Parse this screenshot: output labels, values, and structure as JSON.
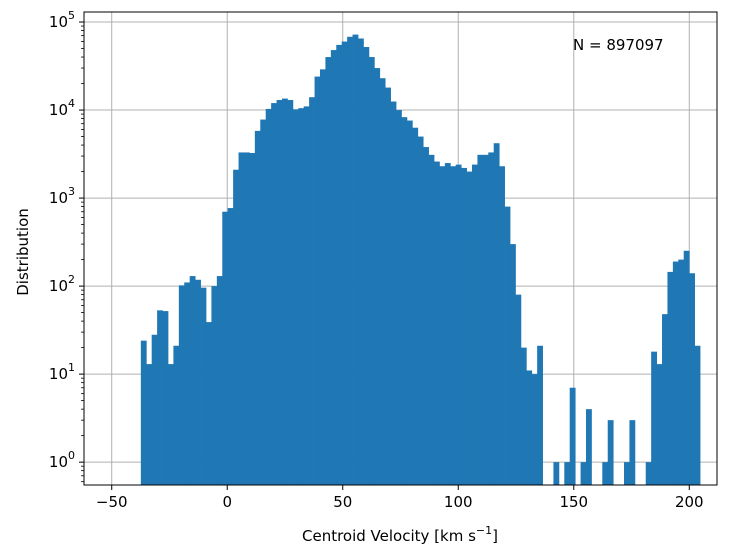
{
  "chart_data": {
    "type": "bar",
    "subtype": "histogram",
    "xlabel_main": "Centroid Velocity [km s",
    "xlabel_sup": "−1",
    "xlabel_end": "]",
    "ylabel": "Distribution",
    "annotation": "N = 897097",
    "xlim": [
      -62,
      212
    ],
    "ylim": [
      0.55,
      130000
    ],
    "yscale": "log",
    "grid": true,
    "color": "#1f77b4",
    "xticks": [
      -50,
      0,
      50,
      100,
      150,
      200
    ],
    "xtick_labels": [
      "−50",
      "0",
      "50",
      "100",
      "150",
      "200"
    ],
    "yticks": [
      1,
      10,
      100,
      1000,
      10000,
      100000
    ],
    "ytick_base": "10",
    "ytick_exponents": [
      "0",
      "1",
      "2",
      "3",
      "4",
      "5"
    ],
    "bin_width": 2.35,
    "bin_start": -37.4,
    "values": [
      24,
      13,
      28,
      53,
      52,
      13,
      21,
      102,
      110,
      130,
      118,
      96,
      39,
      100,
      130,
      700,
      770,
      2100,
      3300,
      3300,
      3250,
      5800,
      7800,
      10300,
      12000,
      13000,
      13500,
      13000,
      10200,
      10500,
      11000,
      14000,
      24000,
      29000,
      40000,
      48000,
      55000,
      60000,
      68000,
      72000,
      65000,
      52000,
      40000,
      30000,
      23000,
      18000,
      12500,
      10000,
      8300,
      7600,
      6300,
      5000,
      3800,
      3100,
      2600,
      2300,
      2500,
      2300,
      2400,
      2200,
      2000,
      2400,
      3100,
      3100,
      3300,
      4200,
      2300,
      800,
      300,
      80,
      20,
      11,
      10,
      21,
      0,
      0,
      1,
      0,
      1,
      7,
      0,
      1,
      4,
      0,
      0,
      1,
      3,
      0,
      0,
      1,
      3,
      0,
      0,
      1,
      18,
      13,
      48,
      145,
      190,
      200,
      252,
      140,
      21
    ]
  }
}
